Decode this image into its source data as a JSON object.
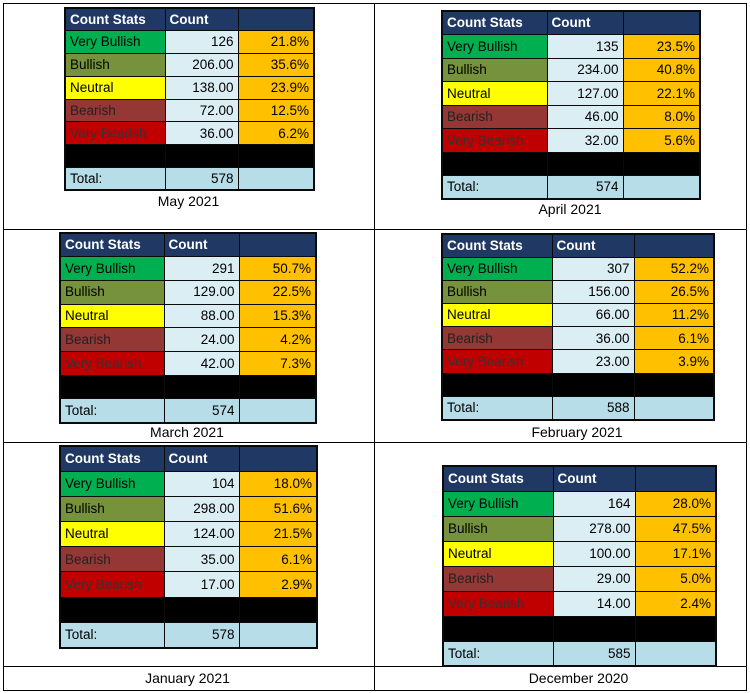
{
  "headers": {
    "col1": "Count Stats",
    "col2": "Count",
    "col3": ""
  },
  "row_labels": [
    "Very Bullish",
    "Bullish",
    "Neutral",
    "Bearish",
    "Very Bearish"
  ],
  "total_label": "Total:",
  "panels": [
    {
      "caption": "May 2021",
      "counts": [
        "126",
        "206.00",
        "138.00",
        "72.00",
        "36.00"
      ],
      "percents": [
        "21.8%",
        "35.6%",
        "23.9%",
        "12.5%",
        "6.2%"
      ],
      "total": "578"
    },
    {
      "caption": "April 2021",
      "counts": [
        "135",
        "234.00",
        "127.00",
        "46.00",
        "32.00"
      ],
      "percents": [
        "23.5%",
        "40.8%",
        "22.1%",
        "8.0%",
        "5.6%"
      ],
      "total": "574"
    },
    {
      "caption": "March 2021",
      "counts": [
        "291",
        "129.00",
        "88.00",
        "24.00",
        "42.00"
      ],
      "percents": [
        "50.7%",
        "22.5%",
        "15.3%",
        "4.2%",
        "7.3%"
      ],
      "total": "574"
    },
    {
      "caption": "February 2021",
      "counts": [
        "307",
        "156.00",
        "66.00",
        "36.00",
        "23.00"
      ],
      "percents": [
        "52.2%",
        "26.5%",
        "11.2%",
        "6.1%",
        "3.9%"
      ],
      "total": "588"
    },
    {
      "caption": "January 2021",
      "counts": [
        "104",
        "298.00",
        "124.00",
        "35.00",
        "17.00"
      ],
      "percents": [
        "18.0%",
        "51.6%",
        "21.5%",
        "6.1%",
        "2.9%"
      ],
      "total": "578"
    },
    {
      "caption": "December 2020",
      "counts": [
        "164",
        "278.00",
        "100.00",
        "29.00",
        "14.00"
      ],
      "percents": [
        "28.0%",
        "47.5%",
        "17.1%",
        "5.0%",
        "2.4%"
      ],
      "total": "585"
    }
  ],
  "colors": {
    "header": "#1f3864",
    "very_bullish": "#00b050",
    "bullish": "#76923c",
    "neutral": "#ffff00",
    "bearish": "#953735",
    "very_bearish": "#c00000",
    "count_cell": "#dbeef4",
    "percent_cell": "#ffc000",
    "total_row": "#b7dde8"
  }
}
